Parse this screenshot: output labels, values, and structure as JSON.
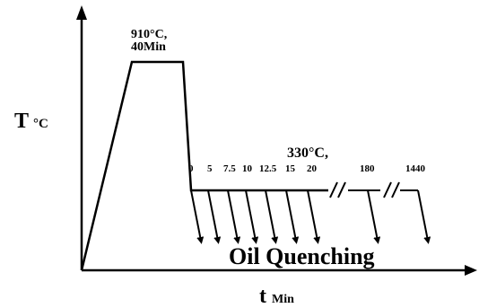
{
  "axes": {
    "y_label": "T",
    "y_unit": "°C",
    "x_label": "t",
    "x_unit": "Min"
  },
  "austenitize": {
    "temp": "910°C,",
    "time": "40Min"
  },
  "isothermal": {
    "temp": "330°C,"
  },
  "hold_times": [
    "0",
    "5",
    "7.5",
    "10",
    "12.5",
    "15",
    "20",
    "180",
    "1440"
  ],
  "quench_label": "Oil Quenching"
}
